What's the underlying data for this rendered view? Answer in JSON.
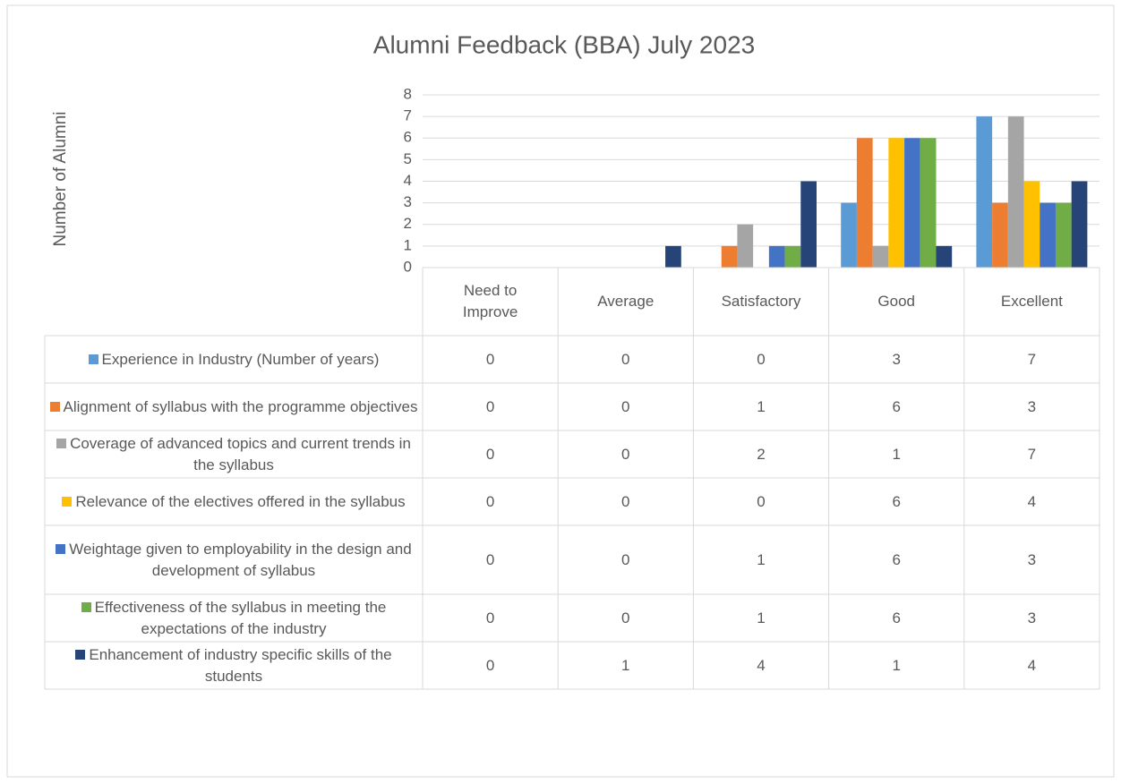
{
  "chart_data": {
    "type": "bar",
    "title": "Alumni Feedback (BBA) July  2023",
    "y_label": "Number of Alumni",
    "categories": [
      "Need to Improve",
      "Average",
      "Satisfactory",
      "Good",
      "Excellent"
    ],
    "series": [
      {
        "name": "Experience in Industry (Number of years)",
        "color": "#5b9bd5",
        "values": [
          0,
          0,
          0,
          3,
          7
        ]
      },
      {
        "name": "Alignment of syllabus with the programme objectives",
        "color": "#ed7d31",
        "values": [
          0,
          0,
          1,
          6,
          3
        ]
      },
      {
        "name": "Coverage of advanced topics and current trends in the syllabus",
        "color": "#a5a5a5",
        "values": [
          0,
          0,
          2,
          1,
          7
        ]
      },
      {
        "name": "Relevance of the electives offered in the syllabus",
        "color": "#ffc000",
        "values": [
          0,
          0,
          0,
          6,
          4
        ]
      },
      {
        "name": "Weightage given to employability in the design and development of syllabus",
        "color": "#4472c4",
        "values": [
          0,
          0,
          1,
          6,
          3
        ]
      },
      {
        "name": "Effectiveness of the syllabus in meeting the expectations of the industry",
        "color": "#70ad47",
        "values": [
          0,
          0,
          1,
          6,
          3
        ]
      },
      {
        "name": "Enhancement of industry specific skills of the students",
        "color": "#264478",
        "values": [
          0,
          1,
          4,
          1,
          4
        ]
      }
    ],
    "ylim": [
      0,
      8
    ],
    "yticks": [
      0,
      1,
      2,
      3,
      4,
      5,
      6,
      7,
      8
    ],
    "grid": true,
    "data_table": true
  }
}
